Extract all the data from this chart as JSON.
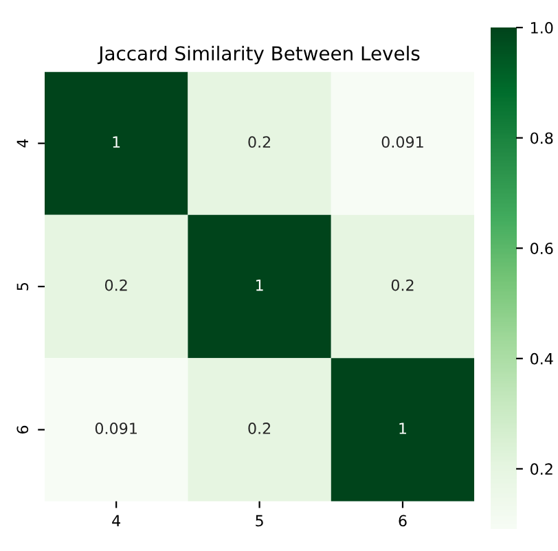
{
  "chart_data": {
    "type": "heatmap",
    "title": "Jaccard Similarity Between Levels",
    "categories": [
      "4",
      "5",
      "6"
    ],
    "y_categories": [
      "4",
      "5",
      "6"
    ],
    "cells": [
      [
        1,
        0.2,
        0.091
      ],
      [
        0.2,
        1,
        0.2
      ],
      [
        0.091,
        0.2,
        1
      ]
    ],
    "data_labels": true,
    "clim": [
      0.091,
      1
    ],
    "cticks": [
      0.2,
      0.4,
      0.6,
      0.8,
      {
        "value": 1,
        "label": "1.0"
      }
    ]
  }
}
